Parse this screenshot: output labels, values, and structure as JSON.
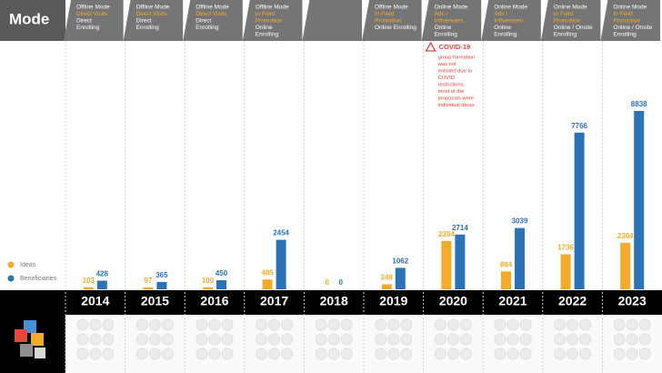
{
  "chart_data": {
    "type": "bar",
    "title": "Mode",
    "categories": [
      "2014",
      "2015",
      "2016",
      "2017",
      "2018",
      "2019",
      "2020",
      "2021",
      "2022",
      "2023"
    ],
    "series": [
      {
        "name": "Ideas",
        "color": "#f4ab2a",
        "values": [
          103,
          97,
          100,
          485,
          0,
          248,
          2394,
          884,
          1736,
          2304
        ]
      },
      {
        "name": "Beneficiaries",
        "color": "#2b73b6",
        "values": [
          428,
          365,
          450,
          2454,
          0,
          1062,
          2714,
          3039,
          7766,
          8838
        ]
      }
    ],
    "annotation": {
      "title": "COVID-19",
      "lines": [
        "group formation",
        "was not",
        "enlisted due to",
        "COVID",
        "restrictions,",
        "most of the",
        "proposals were",
        "individual ideas."
      ]
    }
  },
  "headers": [
    {
      "mode": "Offline Mode",
      "channel": [
        "Direct Visits"
      ],
      "enrolling": [
        "Direct",
        "Enrolling"
      ]
    },
    {
      "mode": "Offline Mode",
      "channel": [
        "Direct Visits"
      ],
      "enrolling": [
        "Direct",
        "Enrolling"
      ]
    },
    {
      "mode": "Offline Mode",
      "channel": [
        "Direct Visits"
      ],
      "enrolling": [
        "Direct",
        "Enrolling"
      ]
    },
    {
      "mode": "Offline Mode",
      "channel": [
        "In Field",
        "Promotion"
      ],
      "enrolling": [
        "Online",
        "Enrolling"
      ]
    },
    null,
    {
      "mode": "Offline Mode",
      "channel": [
        "In Field",
        "Promotion"
      ],
      "enrolling": [
        "Online Enrolling"
      ]
    },
    {
      "mode": "Online Mode",
      "channel": [
        "Ads /",
        "Influencers"
      ],
      "enrolling": [
        "Online",
        "Enrolling"
      ]
    },
    {
      "mode": "Online Mode",
      "channel": [
        "Ads /",
        "Influencers"
      ],
      "enrolling": [
        "Online",
        "Enrolling"
      ]
    },
    {
      "mode": "Online Mode",
      "channel": [
        "In Field",
        "Promotion"
      ],
      "enrolling": [
        "Online / Onsite",
        "Enrolling"
      ]
    },
    {
      "mode": "Online Mode",
      "channel": [
        "In Field",
        "Promotion"
      ],
      "enrolling": [
        "Online / Onsite",
        "Enrolling"
      ]
    }
  ]
}
